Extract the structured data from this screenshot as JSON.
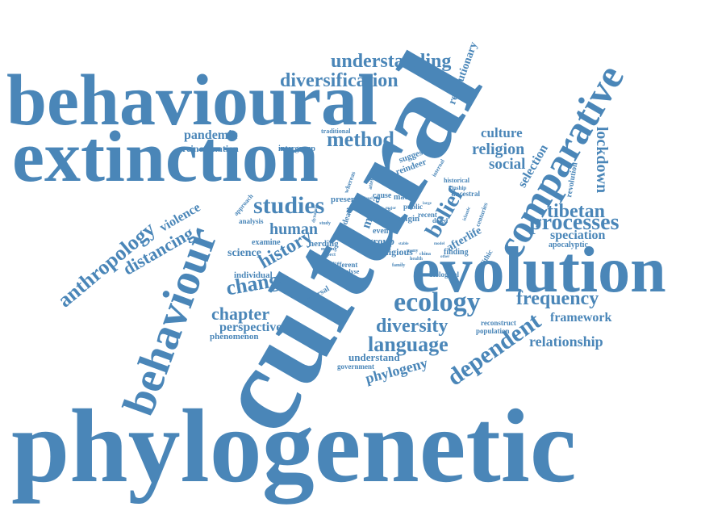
{
  "color": "#4a86b8",
  "words": {
    "phylogenetic": "phylogenetic",
    "cultural": "cultural",
    "behavioural_big": "behavioural",
    "extinction": "extinction",
    "evolution": "evolution",
    "behaviour": "behaviour",
    "comparative": "comparative",
    "understanding": "understanding",
    "diversification": "diversification",
    "revolutionary": "revolutionary",
    "method": "method",
    "pandemic": "pandemic",
    "reincarnation": "reincarnation",
    "intergroup": "intergroup",
    "traditional": "traditional",
    "culture": "culture",
    "religion": "religion",
    "social": "social",
    "selection": "selection",
    "lockdown": "lockdown",
    "suggest": "suggest",
    "reindeer": "reindeer",
    "studies": "studies",
    "human": "human",
    "history": "history",
    "anthropology": "anthropology",
    "violence": "violence",
    "distancing": "distancing",
    "belief": "belief",
    "tibetan": "tibetan",
    "processes": "processes",
    "speciation": "speciation",
    "apocalyptic": "apocalyptic",
    "revolution": "revolution",
    "change": "change",
    "chapter": "chapter",
    "perspective": "perspective",
    "phenomenon": "phenomenon",
    "ecology": "ecology",
    "frequency": "frequency",
    "framework": "framework",
    "diversity": "diversity",
    "language": "language",
    "dependent": "dependent",
    "relationship": "relationship",
    "understand": "understand",
    "government": "government",
    "phylogeny": "phylogeny",
    "analysis": "analysis",
    "examine": "examine",
    "science": "science",
    "herding": "herding",
    "individual": "individual",
    "dispersal": "dispersal",
    "group": "group",
    "religious": "religious",
    "event": "event",
    "origin": "origin",
    "public": "public",
    "macro": "macro",
    "cause": "cause",
    "present": "present",
    "media": "media",
    "death": "death",
    "recent": "recent",
    "dated": "dated",
    "historical": "historical",
    "kinship": "kinship",
    "ancestral": "ancestral",
    "internal": "internal",
    "afterlife": "afterlife",
    "neolithic": "neolithic",
    "finding": "finding",
    "biological": "biological",
    "reconstruct": "reconstruct",
    "population": "population",
    "different": "different",
    "analyse": "analyse",
    "approach": "approach",
    "whereas": "whereas",
    "attention": "attention",
    "islamic": "islamic",
    "centuries": "centuries",
    "study": "study",
    "making": "making",
    "aspect": "aspect",
    "health": "health",
    "family": "family",
    "china": "china",
    "many": "many",
    "dynamic": "dynamic",
    "more": "more",
    "level": "level",
    "stable": "stable",
    "result": "result",
    "major": "major",
    "model": "model",
    "other": "other",
    "large": "large",
    "society": "society"
  }
}
